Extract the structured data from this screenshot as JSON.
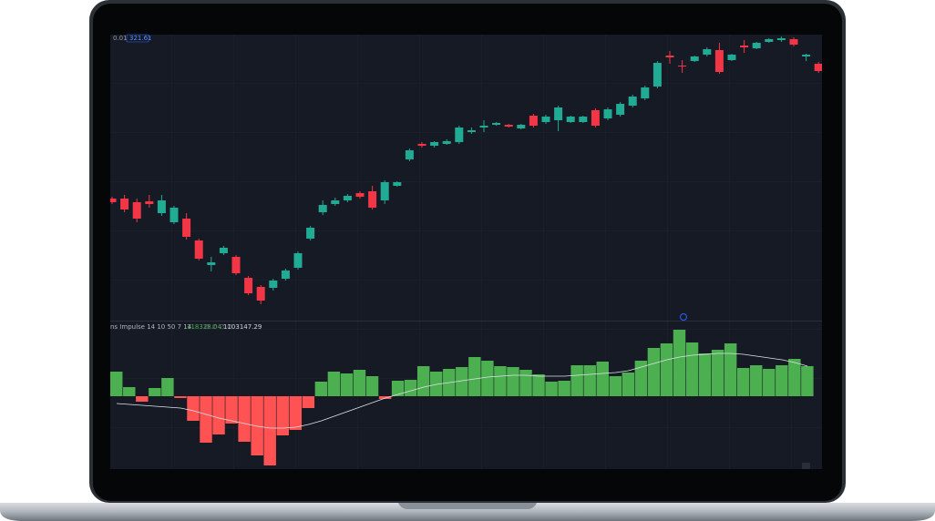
{
  "chart_data": [
    {
      "type": "candlestick",
      "annotations": [
        "0.01",
        "321.61"
      ],
      "up_color": "#22ab94",
      "down_color": "#f23645",
      "ylim": [
        0,
        314
      ],
      "open": [
        134,
        134,
        130,
        131,
        118,
        108,
        112,
        88,
        61,
        74,
        70,
        47,
        37,
        36,
        46,
        58,
        90,
        119,
        128,
        132,
        140,
        142,
        132,
        148,
        177,
        194,
        192,
        194,
        196,
        207,
        212,
        215,
        215,
        211,
        225,
        218,
        220,
        218,
        218,
        231,
        222,
        226,
        236,
        244,
        257,
        291,
        280,
        285,
        292,
        297,
        286,
        302,
        299,
        306,
        308,
        309,
        290,
        282
      ],
      "high": [
        136,
        138,
        134,
        138,
        138,
        126,
        118,
        90,
        70,
        82,
        72,
        49,
        39,
        46,
        57,
        76,
        104,
        132,
        135,
        139,
        142,
        148,
        154,
        153,
        189,
        196,
        197,
        199,
        214,
        212,
        220,
        218,
        216,
        216,
        227,
        226,
        236,
        225,
        225,
        233,
        234,
        240,
        248,
        258,
        285,
        296,
        286,
        291,
        300,
        305,
        293,
        308,
        306,
        310,
        312,
        311,
        293,
        284
      ],
      "low": [
        128,
        119,
        108,
        124,
        115,
        106,
        89,
        66,
        54,
        72,
        50,
        28,
        18,
        33,
        44,
        56,
        88,
        116,
        126,
        130,
        134,
        122,
        128,
        147,
        175,
        190,
        190,
        193,
        194,
        205,
        207,
        214,
        212,
        210,
        212,
        216,
        208,
        217,
        217,
        212,
        220,
        224,
        234,
        242,
        255,
        282,
        272,
        284,
        290,
        271,
        285,
        294,
        298,
        305,
        306,
        301,
        285,
        272
      ],
      "close": [
        130,
        122,
        112,
        128,
        132,
        124,
        92,
        68,
        64,
        80,
        52,
        30,
        22,
        44,
        55,
        74,
        102,
        127,
        132,
        137,
        136,
        124,
        152,
        152,
        187,
        192,
        196,
        197,
        212,
        209,
        214,
        217,
        213,
        215,
        214,
        224,
        234,
        224,
        224,
        214,
        232,
        238,
        246,
        256,
        283,
        289,
        279,
        290,
        298,
        273,
        292,
        300,
        305,
        309,
        310,
        303,
        292,
        274
      ]
    },
    {
      "type": "histogram",
      "title": "ns Impulse 14 10 50 7 14",
      "annotations": [
        "118328.04",
        "∅ ∅ ∅ ∅",
        "1103147.29"
      ],
      "up_color": "#4caf50",
      "down_color": "#ff5252",
      "line_color": "#e0e3eb",
      "ylim": [
        -80,
        83
      ],
      "values": [
        27,
        10,
        -6,
        9,
        20,
        -2,
        -27,
        -51,
        -42,
        -30,
        -50,
        -65,
        -76,
        -43,
        -37,
        -13,
        16,
        27,
        25,
        29,
        22,
        -3,
        17,
        18,
        33,
        27,
        30,
        32,
        43,
        39,
        33,
        32,
        29,
        24,
        16,
        17,
        34,
        34,
        38,
        22,
        26,
        39,
        53,
        58,
        73,
        59,
        47,
        51,
        58,
        31,
        34,
        30,
        34,
        41,
        33
      ],
      "line_values": [
        -8,
        -9,
        -10,
        -11,
        -12,
        -13,
        -16,
        -20,
        -24,
        -27,
        -30,
        -33,
        -35,
        -35,
        -34,
        -31,
        -27,
        -22,
        -17,
        -12,
        -7,
        -2,
        2,
        6,
        10,
        13,
        15,
        17,
        19,
        21,
        22,
        23,
        23,
        22,
        22,
        22,
        23,
        24,
        25,
        26,
        28,
        32,
        36,
        40,
        43,
        45,
        46,
        47,
        47,
        46,
        44,
        42,
        40,
        37,
        33
      ]
    }
  ]
}
